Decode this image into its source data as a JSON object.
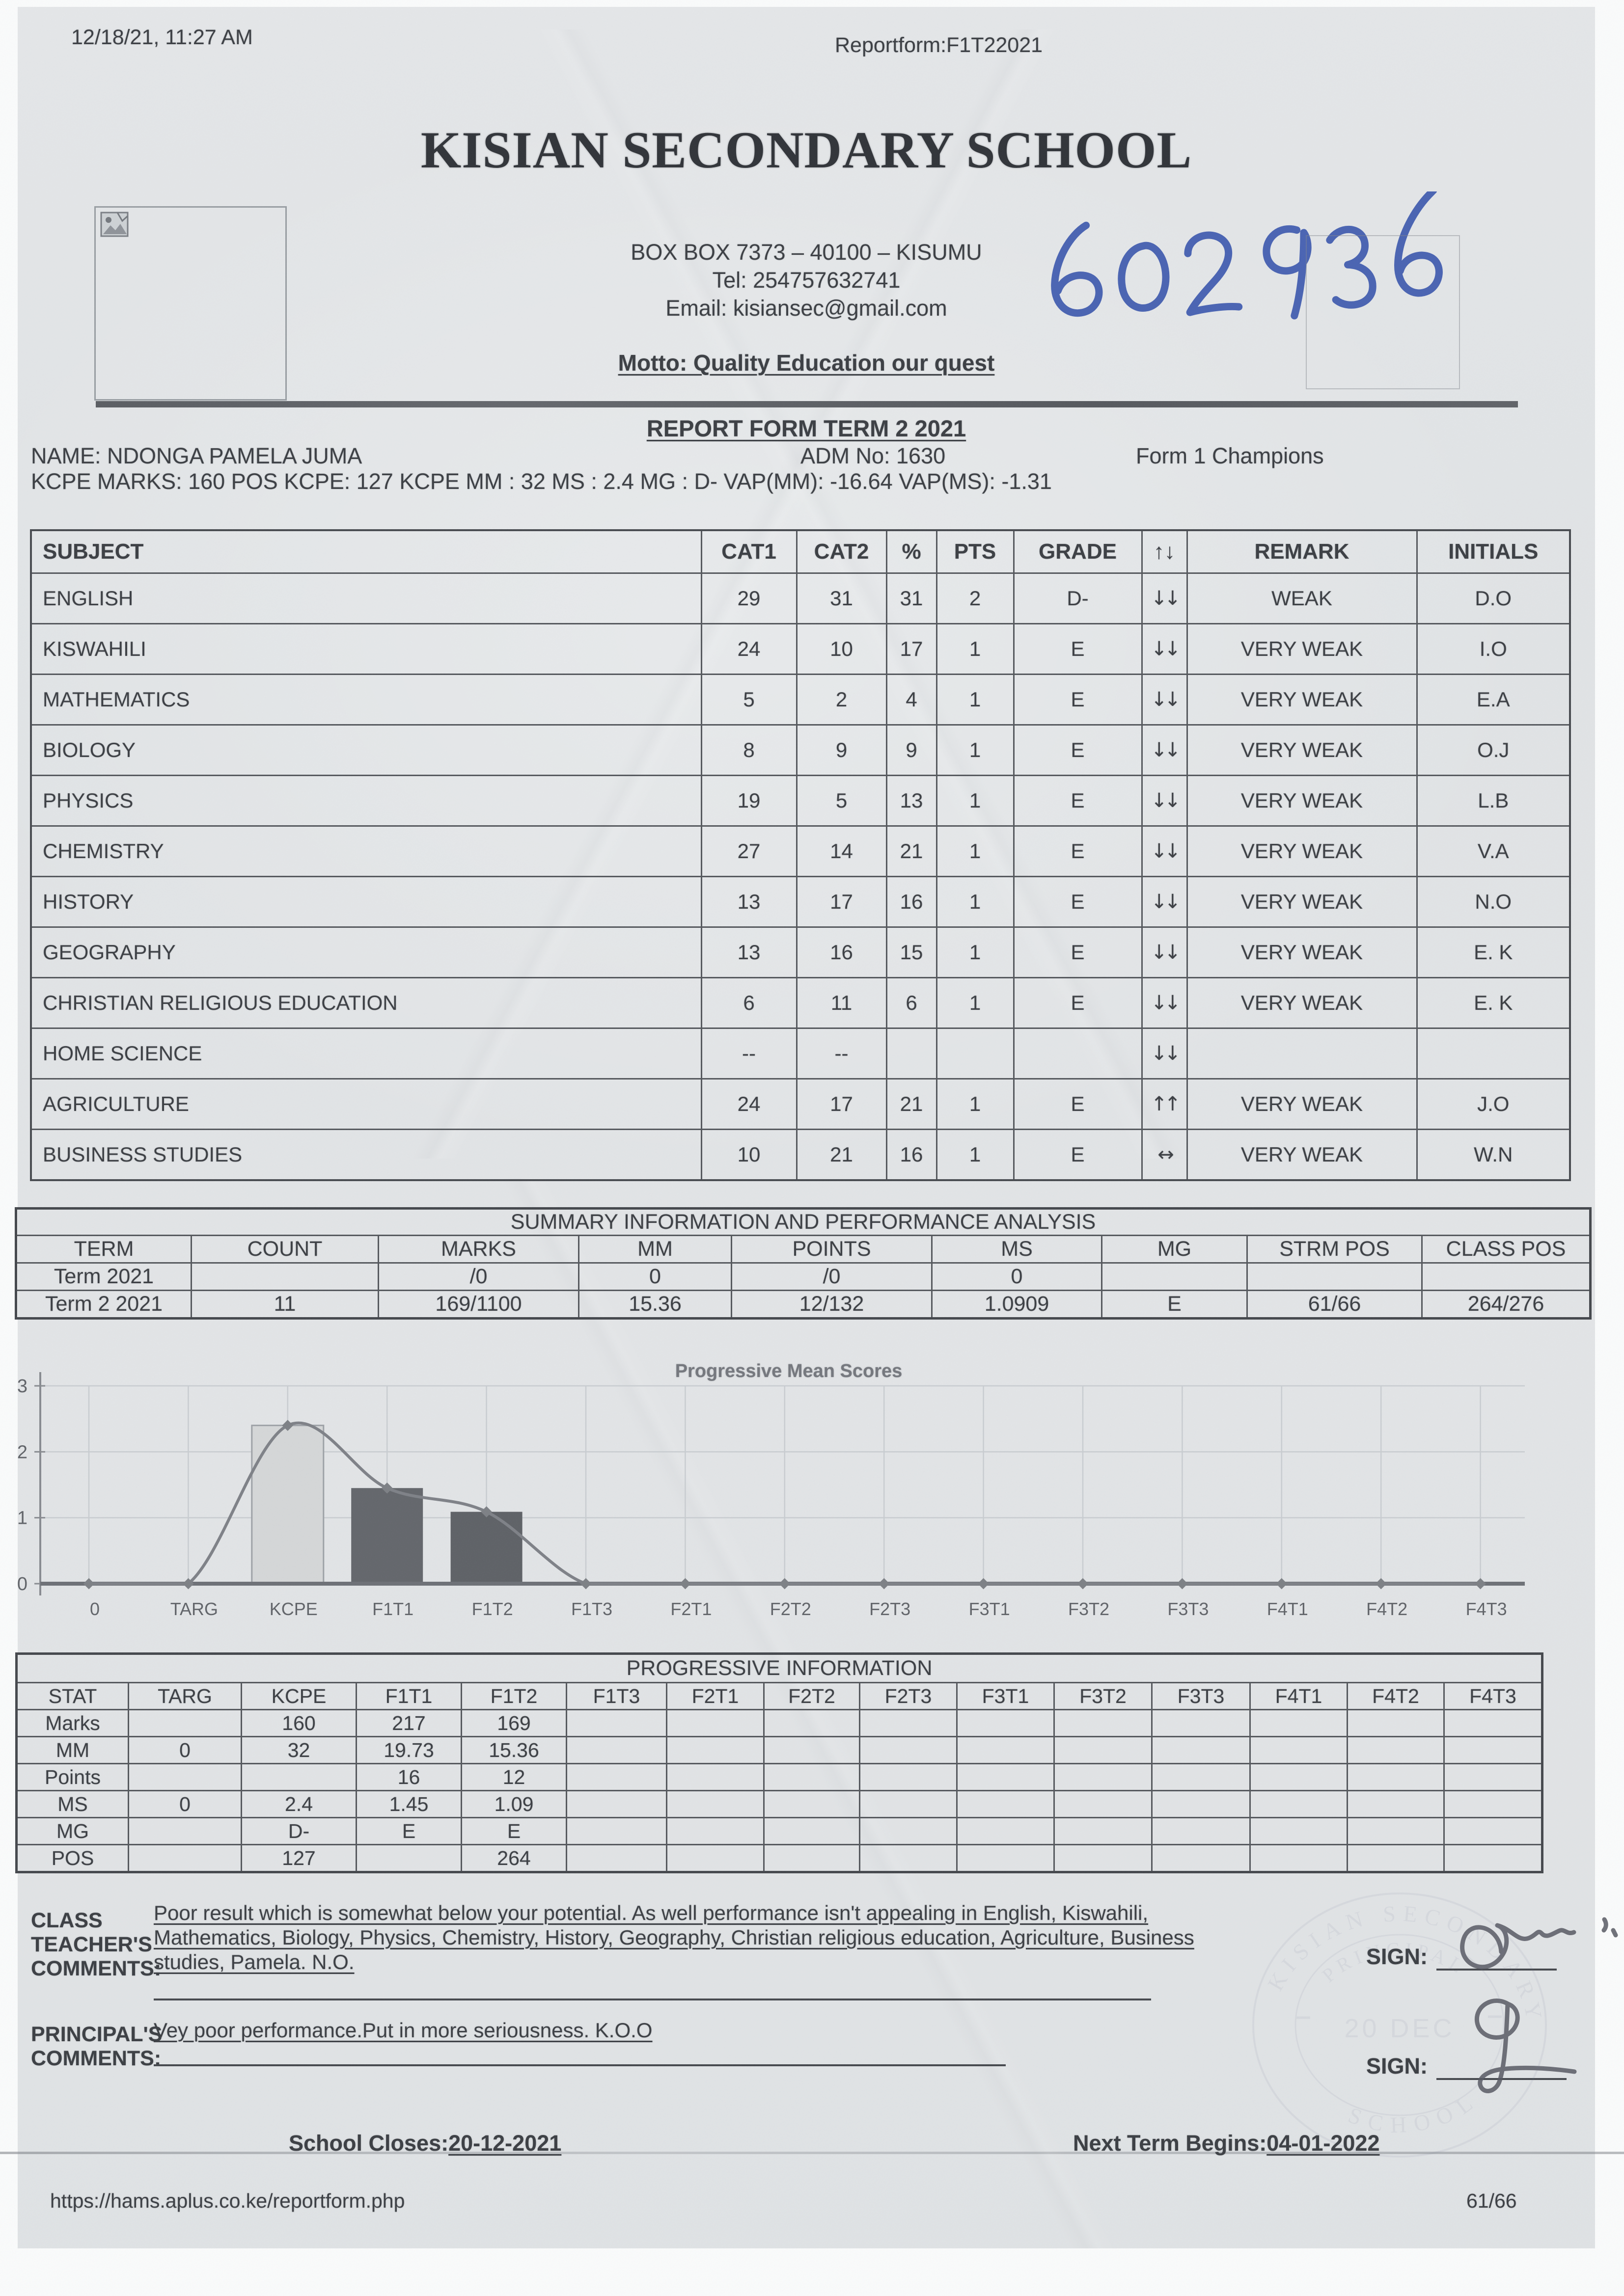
{
  "page": {
    "print_date": "12/18/21, 11:27 AM",
    "doc_ref": "Reportform:F1T22021",
    "footer_url": "https://hams.aplus.co.ke/reportform.php",
    "page_number": "61/66"
  },
  "school": {
    "name": "KISIAN SECONDARY SCHOOL",
    "address": "BOX BOX 7373 – 40100 – KISUMU",
    "tel": "Tel: 254757632741",
    "email": "Email: kisiansec@gmail.com",
    "motto": "Motto: Quality Education our quest",
    "handwritten_number": "602936"
  },
  "report": {
    "title": "REPORT FORM TERM 2 2021",
    "student_name": "NAME: NDONGA PAMELA JUMA",
    "adm_no": "ADM No: 1630",
    "form": "Form 1 Champions",
    "kcpe_line": "KCPE MARKS: 160 POS KCPE: 127 KCPE MM : 32 MS : 2.4 MG : D- VAP(MM): -16.64 VAP(MS): -1.31"
  },
  "subjects": {
    "headers": [
      "SUBJECT",
      "CAT1",
      "CAT2",
      "%",
      "PTS",
      "GRADE",
      "↑↓",
      "REMARK",
      "INITIALS"
    ],
    "rows": [
      {
        "subject": "ENGLISH",
        "cat1": "29",
        "cat2": "31",
        "pct": "31",
        "pts": "2",
        "grade": "D-",
        "trend": "↓↓",
        "remark": "WEAK",
        "initials": "D.O"
      },
      {
        "subject": "KISWAHILI",
        "cat1": "24",
        "cat2": "10",
        "pct": "17",
        "pts": "1",
        "grade": "E",
        "trend": "↓↓",
        "remark": "VERY WEAK",
        "initials": "I.O"
      },
      {
        "subject": "MATHEMATICS",
        "cat1": "5",
        "cat2": "2",
        "pct": "4",
        "pts": "1",
        "grade": "E",
        "trend": "↓↓",
        "remark": "VERY WEAK",
        "initials": "E.A"
      },
      {
        "subject": "BIOLOGY",
        "cat1": "8",
        "cat2": "9",
        "pct": "9",
        "pts": "1",
        "grade": "E",
        "trend": "↓↓",
        "remark": "VERY WEAK",
        "initials": "O.J"
      },
      {
        "subject": "PHYSICS",
        "cat1": "19",
        "cat2": "5",
        "pct": "13",
        "pts": "1",
        "grade": "E",
        "trend": "↓↓",
        "remark": "VERY WEAK",
        "initials": "L.B"
      },
      {
        "subject": "CHEMISTRY",
        "cat1": "27",
        "cat2": "14",
        "pct": "21",
        "pts": "1",
        "grade": "E",
        "trend": "↓↓",
        "remark": "VERY WEAK",
        "initials": "V.A"
      },
      {
        "subject": "HISTORY",
        "cat1": "13",
        "cat2": "17",
        "pct": "16",
        "pts": "1",
        "grade": "E",
        "trend": "↓↓",
        "remark": "VERY WEAK",
        "initials": "N.O"
      },
      {
        "subject": "GEOGRAPHY",
        "cat1": "13",
        "cat2": "16",
        "pct": "15",
        "pts": "1",
        "grade": "E",
        "trend": "↓↓",
        "remark": "VERY WEAK",
        "initials": "E. K"
      },
      {
        "subject": "CHRISTIAN RELIGIOUS EDUCATION",
        "cat1": "6",
        "cat2": "11",
        "pct": "6",
        "pts": "1",
        "grade": "E",
        "trend": "↓↓",
        "remark": "VERY WEAK",
        "initials": "E. K"
      },
      {
        "subject": "HOME SCIENCE",
        "cat1": "--",
        "cat2": "--",
        "pct": "",
        "pts": "",
        "grade": "",
        "trend": "↓↓",
        "remark": "",
        "initials": ""
      },
      {
        "subject": "AGRICULTURE",
        "cat1": "24",
        "cat2": "17",
        "pct": "21",
        "pts": "1",
        "grade": "E",
        "trend": "↑↑",
        "remark": "VERY WEAK",
        "initials": "J.O"
      },
      {
        "subject": "BUSINESS STUDIES",
        "cat1": "10",
        "cat2": "21",
        "pct": "16",
        "pts": "1",
        "grade": "E",
        "trend": "↔",
        "remark": "VERY WEAK",
        "initials": "W.N"
      }
    ]
  },
  "summary": {
    "title": "SUMMARY INFORMATION AND PERFORMANCE ANALYSIS",
    "headers": [
      "TERM",
      "COUNT",
      "MARKS",
      "MM",
      "POINTS",
      "MS",
      "MG",
      "STRM POS",
      "CLASS POS"
    ],
    "rows": [
      [
        "Term 2021",
        "",
        "/0",
        "0",
        "/0",
        "0",
        "",
        "",
        ""
      ],
      [
        "Term 2 2021",
        "11",
        "169/1100",
        "15.36",
        "12/132",
        "1.0909",
        "E",
        "61/66",
        "264/276"
      ]
    ]
  },
  "chart_data": {
    "type": "bar",
    "title": "Progressive Mean Scores",
    "categories": [
      "0",
      "TARG",
      "KCPE",
      "F1T1",
      "F1T2",
      "F1T3",
      "F2T1",
      "F2T2",
      "F2T3",
      "F3T1",
      "F3T2",
      "F3T3",
      "F4T1",
      "F4T2",
      "F4T3"
    ],
    "series": [
      {
        "name": "Mean score bars",
        "type": "bar",
        "values": [
          null,
          null,
          2.4,
          1.45,
          1.09,
          null,
          null,
          null,
          null,
          null,
          null,
          null,
          null,
          null,
          null
        ]
      },
      {
        "name": "Mean score trend",
        "type": "line",
        "values": [
          0,
          0,
          2.4,
          1.45,
          1.09,
          0,
          0,
          0,
          0,
          0,
          0,
          0,
          0,
          0,
          0
        ]
      }
    ],
    "ylim": [
      0,
      3
    ],
    "yticks": [
      0,
      1,
      2,
      3
    ],
    "grid": true,
    "legend": "none",
    "bar_colors": [
      "#d5d7d8",
      "#63666b",
      "#5e6166"
    ]
  },
  "progressive": {
    "title": "PROGRESSIVE INFORMATION",
    "headers": [
      "STAT",
      "TARG",
      "KCPE",
      "F1T1",
      "F1T2",
      "F1T3",
      "F2T1",
      "F2T2",
      "F2T3",
      "F3T1",
      "F3T2",
      "F3T3",
      "F4T1",
      "F4T2",
      "F4T3"
    ],
    "rows": [
      [
        "Marks",
        "",
        "160",
        "217",
        "169",
        "",
        "",
        "",
        "",
        "",
        "",
        "",
        "",
        "",
        ""
      ],
      [
        "MM",
        "0",
        "32",
        "19.73",
        "15.36",
        "",
        "",
        "",
        "",
        "",
        "",
        "",
        "",
        "",
        ""
      ],
      [
        "Points",
        "",
        "",
        "16",
        "12",
        "",
        "",
        "",
        "",
        "",
        "",
        "",
        "",
        "",
        ""
      ],
      [
        "MS",
        "0",
        "2.4",
        "1.45",
        "1.09",
        "",
        "",
        "",
        "",
        "",
        "",
        "",
        "",
        "",
        ""
      ],
      [
        "MG",
        "",
        "D-",
        "E",
        "E",
        "",
        "",
        "",
        "",
        "",
        "",
        "",
        "",
        "",
        ""
      ],
      [
        "POS",
        "",
        "127",
        "",
        "264",
        "",
        "",
        "",
        "",
        "",
        "",
        "",
        "",
        "",
        ""
      ]
    ]
  },
  "comments": {
    "class_label_lines": [
      "CLASS",
      "TEACHER'S",
      "COMMENTS:"
    ],
    "class_comment_lines": [
      "Poor result which is somewhat below your potential. As well performance isn't appealing in English, Kiswahili,",
      "Mathematics, Biology, Physics, Chemistry, History, Geography, Christian religious education, Agriculture, Business",
      "studies, Pamela. N.O."
    ],
    "principal_label_lines": [
      "PRINCIPAL'S",
      "COMMENTS:"
    ],
    "principal_comment": "Vey poor performance.Put in more seriousness. K.O.O",
    "sign_label": "SIGN:",
    "school_closes_label": "School Closes:",
    "school_closes_date": "20-12-2021",
    "next_term_label": "Next Term Begins:",
    "next_term_date": "04-01-2022"
  },
  "stamp": {
    "ring_text_top": "KISIAN SECONDARY",
    "ring_text_bottom": "SCHOOL",
    "inner_text": "PRINCIPAL",
    "date_text": "20 DEC"
  }
}
